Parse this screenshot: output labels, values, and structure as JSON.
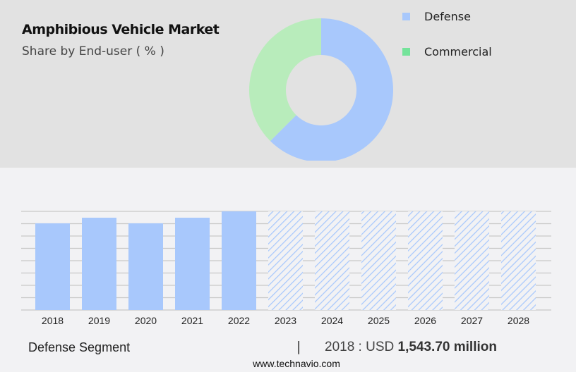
{
  "header": {
    "title": "Amphibious Vehicle Market",
    "subtitle": "Share by End-user ( % )"
  },
  "chart_data": [
    {
      "type": "pie",
      "donut": true,
      "segments": [
        {
          "name": "Defense",
          "value": 62.5,
          "color": "#a8c8fc"
        },
        {
          "name": "Commercial",
          "value": 37.5,
          "color": "#b8ecbb"
        }
      ],
      "legend": [
        {
          "label": "Defense",
          "color": "#a8c8fc"
        },
        {
          "label": "Commercial",
          "color": "#74e39a"
        }
      ],
      "legend_placement": "right"
    },
    {
      "type": "bar",
      "categories": [
        "2018",
        "2019",
        "2020",
        "2021",
        "2022",
        "2023",
        "2024",
        "2025",
        "2026",
        "2027",
        "2028"
      ],
      "values": [
        1543.7,
        1644,
        1544,
        1644,
        1757,
        null,
        null,
        null,
        null,
        null,
        null
      ],
      "forecast": [
        false,
        false,
        false,
        false,
        false,
        true,
        true,
        true,
        true,
        true,
        true
      ],
      "color": "#a8c8fc",
      "ylim": [
        0,
        1757
      ],
      "grid": true,
      "y_tick_labels_shown": false
    }
  ],
  "footer": {
    "segment": "Defense Segment",
    "separator": "|",
    "year_label": "2018 : USD",
    "value": "1,543.70 million",
    "website": "www.technavio.com"
  }
}
